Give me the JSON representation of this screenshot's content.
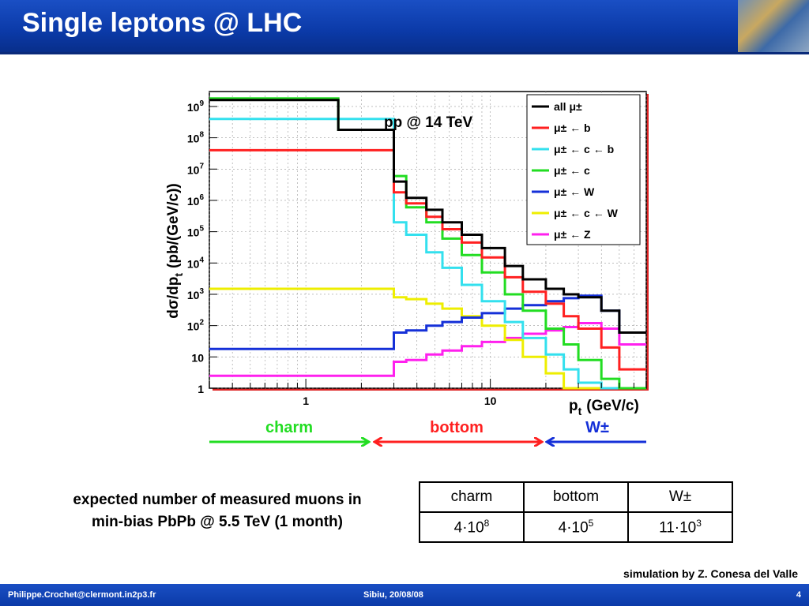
{
  "header": {
    "title": "Single leptons @ LHC"
  },
  "chart_data": {
    "type": "line",
    "annotation": "pp @ 14 TeV",
    "xlabel": "p",
    "xlabel_sub": "t",
    "xlabel_unit": "(GeV/c)",
    "ylabel": "dσ/dp",
    "ylabel_sub": "t",
    "ylabel_unit": "(pb/(GeV/c))",
    "xscale": "log",
    "yscale": "log",
    "xlim": [
      0.3,
      70
    ],
    "ylim": [
      1,
      3000000000
    ],
    "grid": true,
    "legend_position": "top-right",
    "x_ticks": [
      {
        "value": 1,
        "label": "1"
      },
      {
        "value": 10,
        "label": "10"
      }
    ],
    "y_ticks": [
      {
        "value": 1,
        "label": "1",
        "exp": ""
      },
      {
        "value": 10,
        "label": "10",
        "exp": ""
      },
      {
        "value": 100,
        "label": "10",
        "exp": "2"
      },
      {
        "value": 1000,
        "label": "10",
        "exp": "3"
      },
      {
        "value": 10000,
        "label": "10",
        "exp": "4"
      },
      {
        "value": 100000,
        "label": "10",
        "exp": "5"
      },
      {
        "value": 1000000,
        "label": "10",
        "exp": "6"
      },
      {
        "value": 10000000,
        "label": "10",
        "exp": "7"
      },
      {
        "value": 100000000,
        "label": "10",
        "exp": "8"
      },
      {
        "value": 1000000000,
        "label": "10",
        "exp": "9"
      }
    ],
    "x": [
      0.3,
      1.5,
      3.0,
      3.5,
      4.5,
      5.5,
      7,
      9,
      12,
      15,
      20,
      25,
      30,
      40,
      50,
      70
    ],
    "series": [
      {
        "name": "all μ±",
        "color": "#000000",
        "values": [
          1600000000.0,
          180000000.0,
          4000000.0,
          1200000.0,
          500000.0,
          200000.0,
          80000.0,
          30000.0,
          8000.0,
          3000.0,
          1500.0,
          1000.0,
          800.0,
          300.0,
          60.0,
          15.0
        ]
      },
      {
        "name": "μ± ← b",
        "color": "#ff2020",
        "values": [
          40000000.0,
          40000000.0,
          1800000.0,
          800000.0,
          300000.0,
          120000.0,
          45000.0,
          15000.0,
          3500.0,
          1200.0,
          500.0,
          200.0,
          80.0,
          20.0,
          4,
          1.5
        ]
      },
      {
        "name": "μ± ← c ← b",
        "color": "#33e0ee",
        "values": [
          400000000.0,
          400000000.0,
          200000.0,
          80000.0,
          22000.0,
          7000.0,
          2000.0,
          600.0,
          130.0,
          40.0,
          12.0,
          4,
          1.5,
          1,
          1,
          1
        ]
      },
      {
        "name": "μ± ← c",
        "color": "#22dd22",
        "values": [
          1800000000.0,
          180000000.0,
          6000000.0,
          600000.0,
          200000.0,
          60000.0,
          18000.0,
          5000.0,
          1000.0,
          300.0,
          80.0,
          25.0,
          8,
          2,
          1,
          1
        ]
      },
      {
        "name": "μ± ← W",
        "color": "#1530d8",
        "values": [
          18,
          18,
          60,
          70,
          100,
          130,
          180,
          250,
          350,
          450,
          600,
          750,
          900,
          300,
          60,
          12
        ]
      },
      {
        "name": "μ± ← c ← W",
        "color": "#eeee00",
        "values": [
          1500.0,
          1500.0,
          800,
          700,
          500,
          350,
          200,
          100,
          35,
          10,
          3,
          1,
          1,
          1,
          1,
          1
        ]
      },
      {
        "name": "μ± ← Z",
        "color": "#ff20ee",
        "values": [
          2.5,
          2.5,
          7,
          8,
          12,
          16,
          22,
          30,
          40,
          55,
          70,
          90,
          120,
          80,
          25,
          5
        ]
      }
    ]
  },
  "ranges": [
    {
      "label": "charm",
      "color": "#22dd22"
    },
    {
      "label": "bottom",
      "color": "#ff2020"
    },
    {
      "label": "W±",
      "color": "#1530d8"
    }
  ],
  "note": {
    "line1": "expected number of measured muons in",
    "line2": "min-bias PbPb @ 5.5 TeV (1 month)"
  },
  "table": {
    "headers": [
      "charm",
      "bottom",
      "W±"
    ],
    "values": [
      {
        "mantissa": "4·10",
        "exp": "8"
      },
      {
        "mantissa": "4·10",
        "exp": "5"
      },
      {
        "mantissa": "11·10",
        "exp": "3"
      }
    ]
  },
  "credit": "simulation by Z. Conesa del Valle",
  "footer": {
    "left": "Philippe.Crochet@clermont.in2p3.fr",
    "center": "Sibiu, 20/08/08",
    "page": "4"
  }
}
